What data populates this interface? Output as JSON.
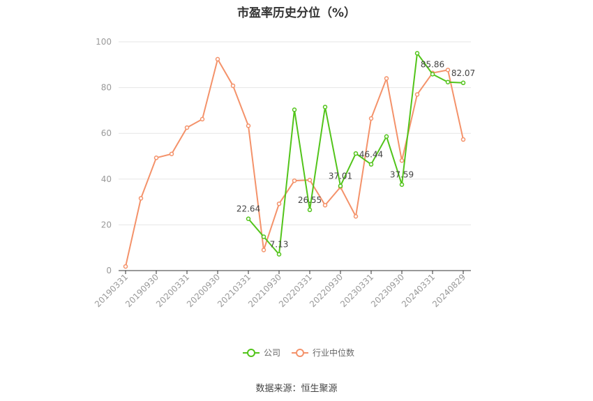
{
  "chart_data": {
    "type": "line",
    "title": "市盈率历史分位（%）",
    "source": "数据来源：恒生聚源",
    "ylim": [
      0,
      100
    ],
    "yticks": [
      0,
      20,
      40,
      60,
      80,
      100
    ],
    "grid": true,
    "legend_position": "bottom-center",
    "x": [
      "20190331",
      "20190630",
      "20190930",
      "20191231",
      "20200331",
      "20200630",
      "20200930",
      "20201231",
      "20210331",
      "20210630",
      "20210930",
      "20211231",
      "20220331",
      "20220630",
      "20220930",
      "20221231",
      "20230331",
      "20230630",
      "20230930",
      "20231231",
      "20240331",
      "20240630",
      "20240829"
    ],
    "xtick_labels": [
      "20190331",
      "20190930",
      "20200331",
      "20200930",
      "20210331",
      "20210930",
      "20220331",
      "20220930",
      "20230331",
      "20230930",
      "20240331",
      "20240829"
    ],
    "series": [
      {
        "name": "公司",
        "color": "#52c41a",
        "values": [
          null,
          null,
          null,
          null,
          null,
          null,
          null,
          null,
          22.64,
          14.8,
          7.13,
          70.3,
          26.55,
          71.5,
          37.01,
          51.2,
          46.44,
          58.6,
          37.59,
          95.0,
          85.86,
          82.4,
          82.07
        ],
        "labels": {
          "8": "22.64",
          "10": "7.13",
          "12": "26.55",
          "14": "37.01",
          "16": "46.44",
          "18": "37.59",
          "20": "85.86",
          "22": "82.07"
        }
      },
      {
        "name": "行业中位数",
        "color": "#f4926a",
        "values": [
          1.8,
          31.6,
          49.3,
          51.0,
          62.5,
          66.2,
          92.4,
          80.8,
          63.3,
          9.0,
          29.2,
          39.3,
          39.6,
          28.6,
          36.5,
          23.7,
          66.5,
          84.0,
          48.1,
          77.0,
          86.4,
          87.7,
          57.3
        ],
        "labels": {}
      }
    ]
  }
}
